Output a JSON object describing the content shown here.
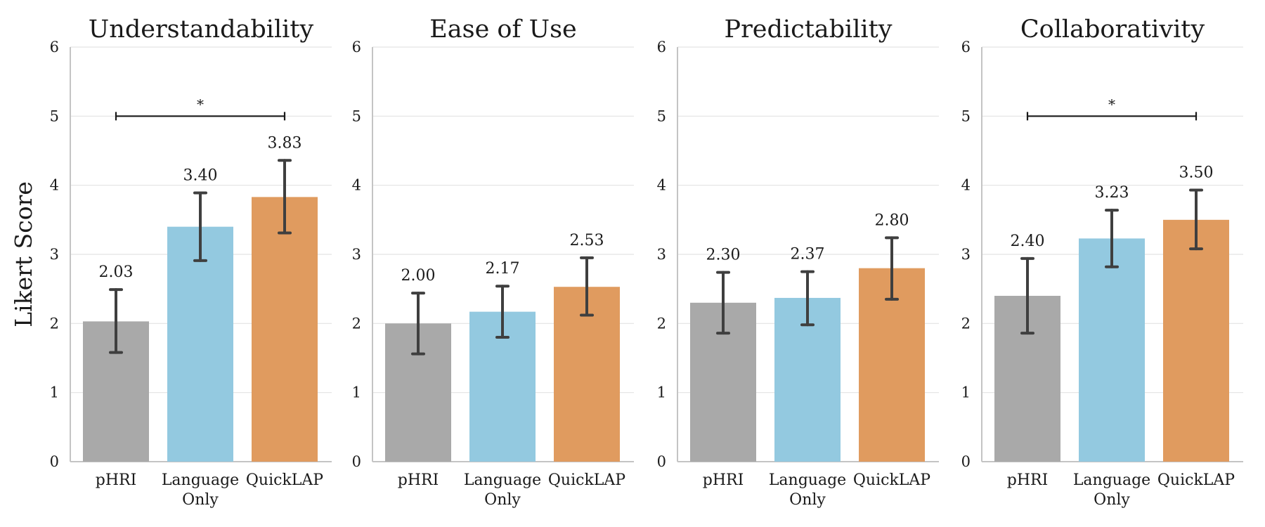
{
  "chart_data": {
    "type": "bar",
    "ylabel": "Likert Score",
    "ylim": [
      0,
      6
    ],
    "yticks": [
      "0",
      "1",
      "2",
      "3",
      "4",
      "5",
      "6"
    ],
    "grid": true,
    "categories": [
      "pHRI",
      "Language Only",
      "QuickLAP"
    ],
    "category_lines": [
      [
        "pHRI"
      ],
      [
        "Language",
        "Only"
      ],
      [
        "QuickLAP"
      ]
    ],
    "colors": [
      "#a9a9a9",
      "#93c9e0",
      "#e09b5f"
    ],
    "error_bar_color": "#3f3f3f",
    "panels": [
      {
        "title": "Understandability",
        "values": [
          2.03,
          3.4,
          3.83
        ],
        "labels": [
          "2.03",
          "3.40",
          "3.83"
        ],
        "err_low": [
          1.58,
          2.91,
          3.31
        ],
        "err_high": [
          2.49,
          3.89,
          4.36
        ],
        "significance": {
          "from": 0,
          "to": 2,
          "y": 5.0,
          "label": "*"
        }
      },
      {
        "title": "Ease of Use",
        "values": [
          2.0,
          2.17,
          2.53
        ],
        "labels": [
          "2.00",
          "2.17",
          "2.53"
        ],
        "err_low": [
          1.56,
          1.8,
          2.12
        ],
        "err_high": [
          2.44,
          2.54,
          2.95
        ],
        "significance": null
      },
      {
        "title": "Predictability",
        "values": [
          2.3,
          2.37,
          2.8
        ],
        "labels": [
          "2.30",
          "2.37",
          "2.80"
        ],
        "err_low": [
          1.86,
          1.98,
          2.35
        ],
        "err_high": [
          2.74,
          2.75,
          3.24
        ],
        "significance": null
      },
      {
        "title": "Collaborativity",
        "values": [
          2.4,
          3.23,
          3.5
        ],
        "labels": [
          "2.40",
          "3.23",
          "3.50"
        ],
        "err_low": [
          1.86,
          2.82,
          3.08
        ],
        "err_high": [
          2.94,
          3.64,
          3.93
        ],
        "significance": {
          "from": 0,
          "to": 2,
          "y": 5.0,
          "label": "*"
        }
      }
    ]
  }
}
